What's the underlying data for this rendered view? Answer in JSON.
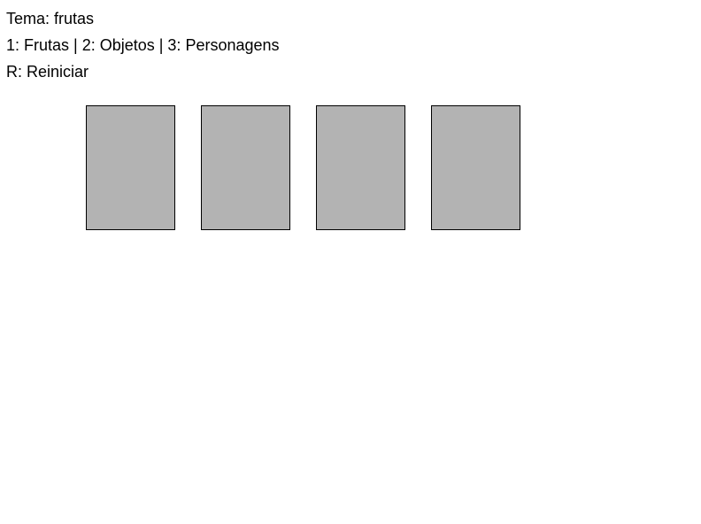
{
  "hud": {
    "theme_line": "Tema: frutas",
    "themes_help": "1: Frutas | 2: Objetos | 3: Personagens",
    "restart_help": "R: Reiniciar"
  },
  "board": {
    "cards": [
      {
        "state": "face-down"
      },
      {
        "state": "face-down"
      },
      {
        "state": "face-down"
      },
      {
        "state": "face-down"
      }
    ]
  },
  "colors": {
    "background": "#ffffff",
    "card_back": "#b3b3b3",
    "card_border": "#000000",
    "text": "#000000"
  }
}
